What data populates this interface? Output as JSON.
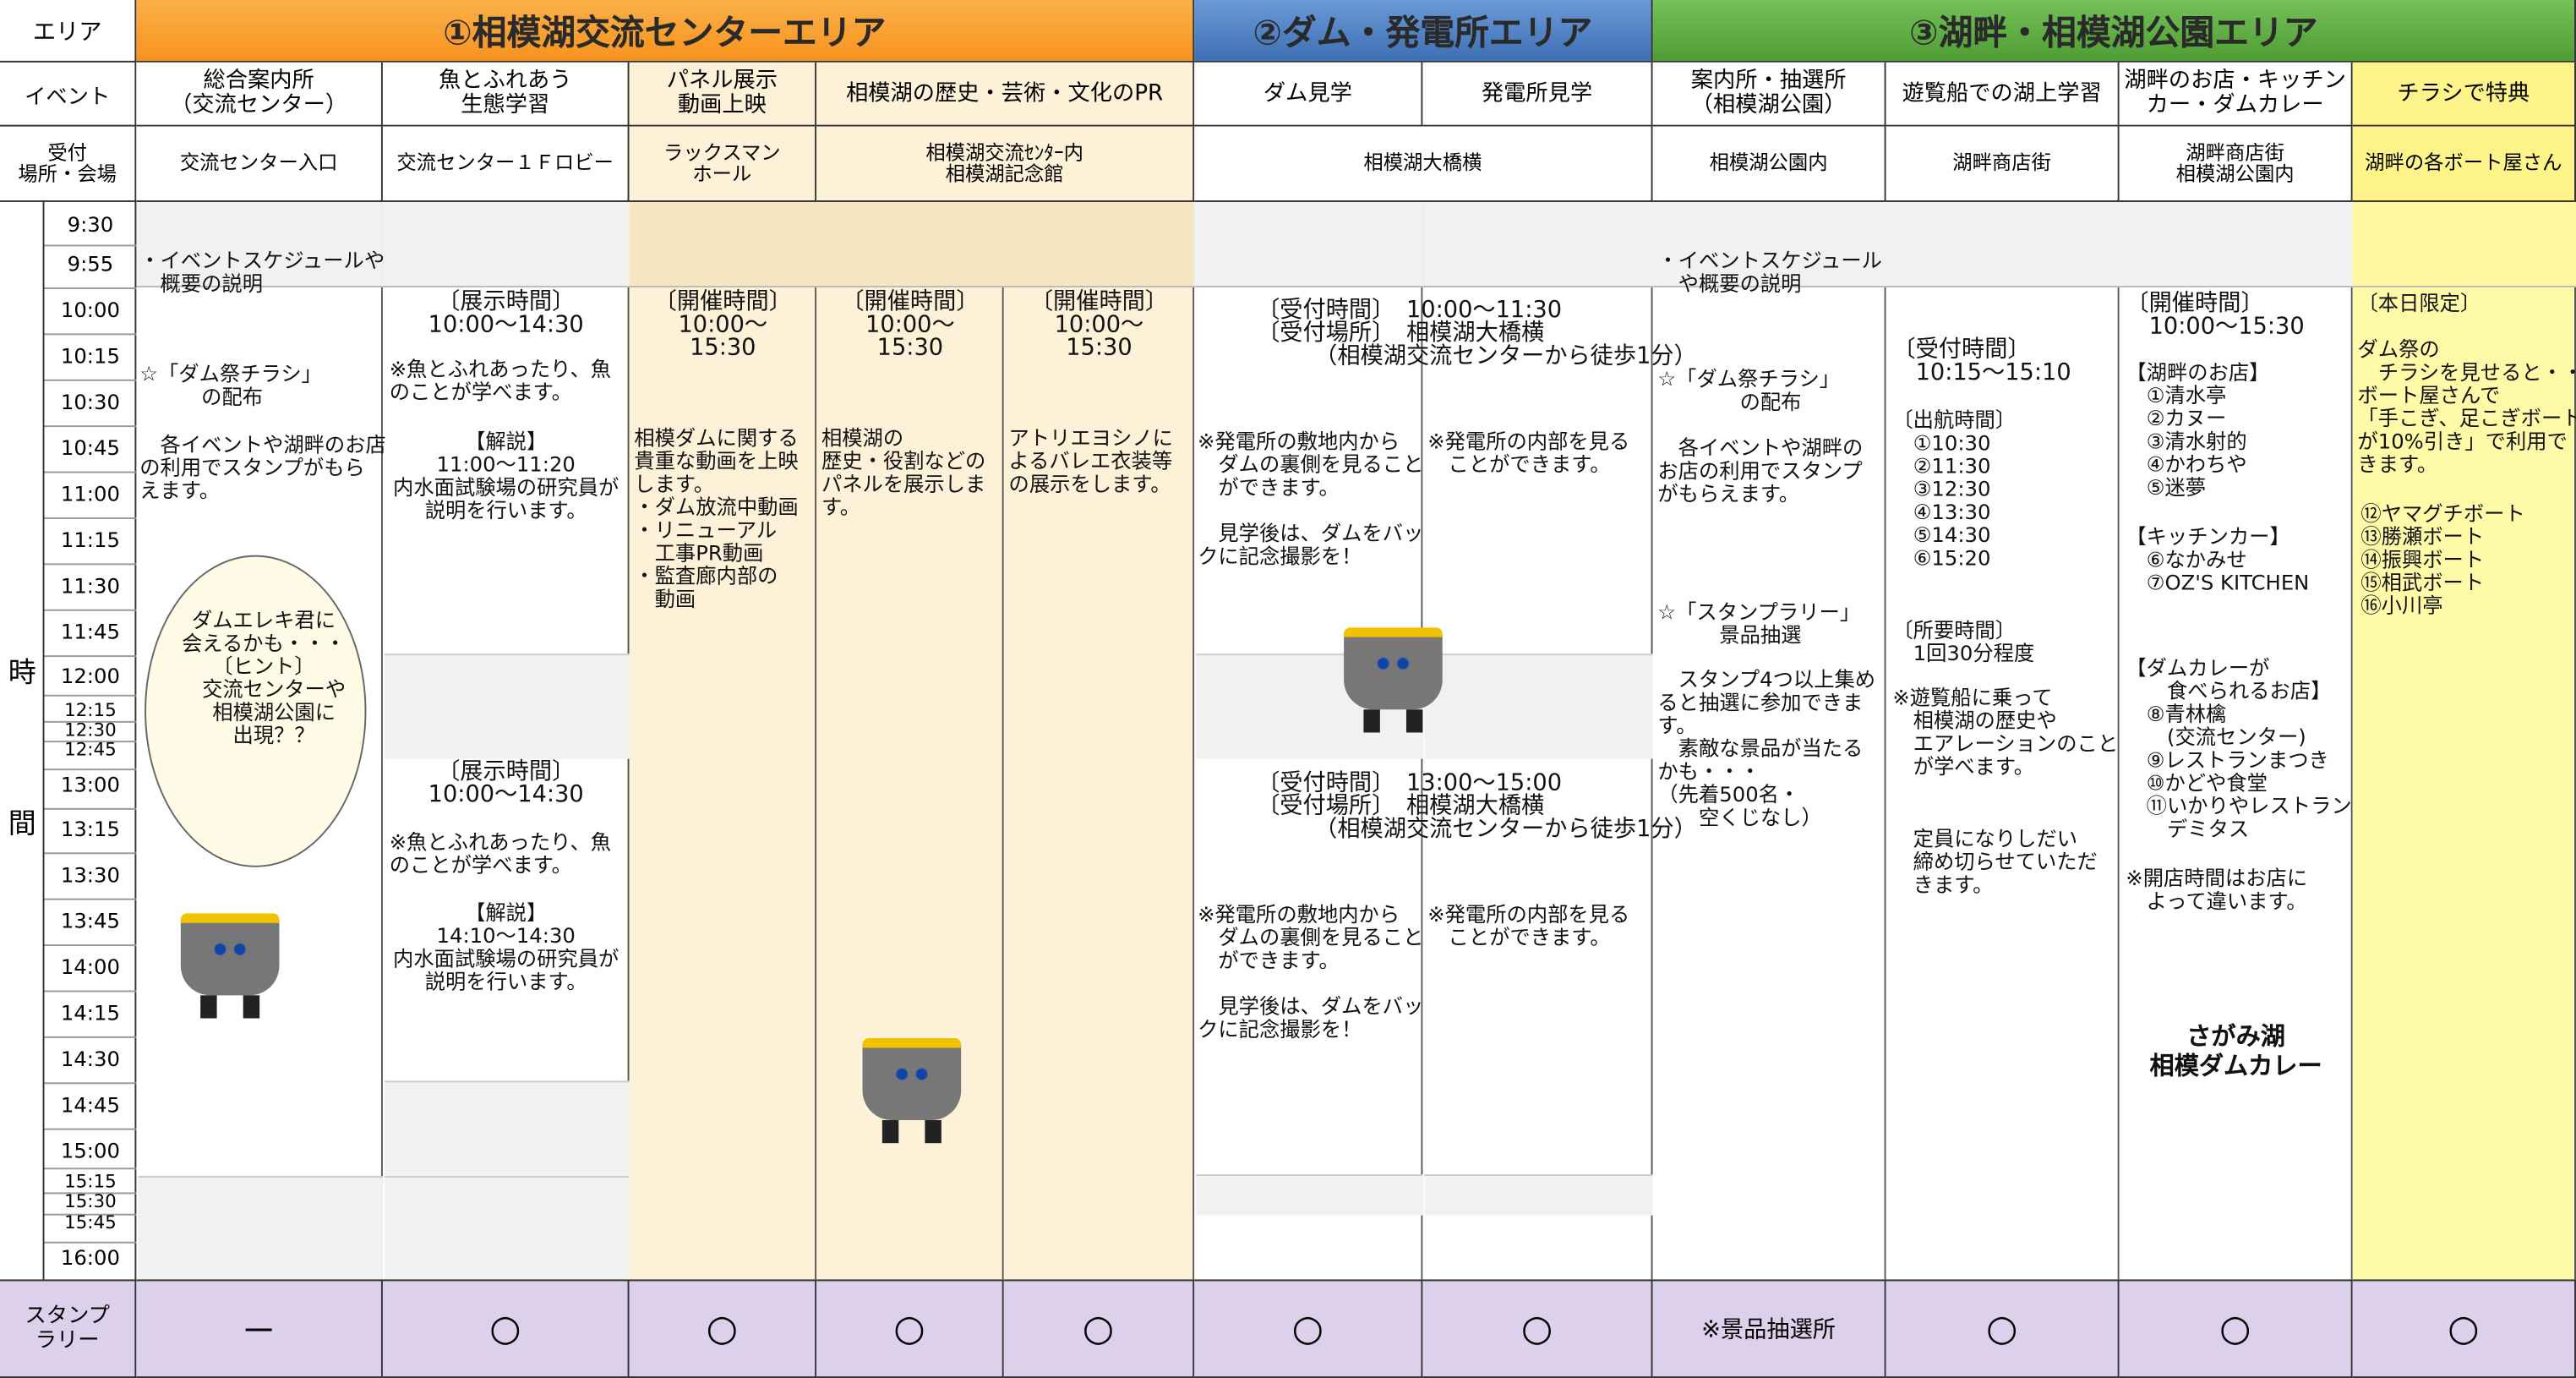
{
  "header": {
    "area_label": "エリア",
    "areas": [
      "①相模湖交流センターエリア",
      "②ダム・発電所エリア",
      "③湖畔・相模湖公園エリア"
    ],
    "event_label": "イベント",
    "venue_label": [
      "受付",
      "場所・会場"
    ],
    "events": [
      [
        "総合案内所",
        "（交流センター）"
      ],
      [
        "魚とふれあう",
        "生態学習"
      ],
      [
        "パネル展示",
        "動画上映"
      ],
      [
        "相模湖の歴史・芸術・文化のPR"
      ],
      [
        "ダム見学"
      ],
      [
        "発電所見学"
      ],
      [
        "案内所・抽選所",
        "（相模湖公園）"
      ],
      [
        "遊覧船での湖上学習"
      ],
      [
        "湖畔のお店・キッチン",
        "カー・ダムカレー"
      ],
      [
        "チラシで特典"
      ]
    ],
    "venues": [
      [
        "交流センター入口"
      ],
      [
        "交流センター１Ｆロビー"
      ],
      [
        "ラックスマン",
        "ホール"
      ],
      [
        "相模湖交流ｾﾝﾀｰ内",
        "相模湖記念館"
      ],
      [
        "相模湖大橋横"
      ],
      [
        "相模湖公園内"
      ],
      [
        "湖畔商店街"
      ],
      [
        "湖畔商店街",
        "相模湖公園内"
      ],
      [
        "湖畔の各ボート屋さん"
      ]
    ]
  },
  "time_label": [
    "時",
    "間"
  ],
  "times": [
    "9:30",
    "9:55",
    "10:00",
    "10:15",
    "10:30",
    "10:45",
    "11:00",
    "11:15",
    "11:30",
    "11:45",
    "12:00",
    "12:15",
    "12:30",
    "12:45",
    "13:00",
    "13:15",
    "13:30",
    "13:45",
    "14:00",
    "14:15",
    "14:30",
    "14:45",
    "15:00",
    "15:15",
    "15:30",
    "15:45",
    "16:00"
  ],
  "blocks": [
    {
      "lines": [
        "・イベントスケジュールや",
        "　概要の説明"
      ]
    },
    {
      "lines": [
        "☆「ダム祭チラシ」",
        "　　　の配布"
      ]
    },
    {
      "lines": [
        "　各イベントや湖畔のお店",
        "の利用でスタンプがもら",
        "えます。"
      ]
    },
    {
      "lines": [
        "ダムエレキ君に",
        "会えるかも・・・",
        "〔ヒント〕",
        "　交流センターや",
        "　相模湖公園に",
        "　出現？？"
      ]
    },
    {
      "lines": [
        "〔展示時間〕",
        "10:00～14:30"
      ]
    },
    {
      "lines": [
        "※魚とふれあったり、魚",
        "のことが学べます。"
      ]
    },
    {
      "lines": [
        "【解説】",
        "11:00～11:20",
        "内水面試験場の研究員が",
        "説明を行います。"
      ]
    },
    {
      "lines": [
        "〔展示時間〕",
        "10:00～14:30"
      ]
    },
    {
      "lines": [
        "※魚とふれあったり、魚",
        "のことが学べます。"
      ]
    },
    {
      "lines": [
        "【解説】",
        "14:10～14:30",
        "内水面試験場の研究員が",
        "説明を行います。"
      ]
    },
    {
      "lines": [
        "〔開催時間〕",
        "10:00～",
        "15:30"
      ]
    },
    {
      "lines": [
        "相模ダムに関する",
        "貴重な動画を上映",
        "します。",
        "・ダム放流中動画",
        "・リニューアル",
        "　工事PR動画",
        "・監査廊内部の",
        "　動画"
      ]
    },
    {
      "lines": [
        "〔開催時間〕",
        "10:00～",
        "15:30"
      ]
    },
    {
      "lines": [
        "相模湖の",
        "歴史・役割などの",
        "パネルを展示しま",
        "す。"
      ]
    },
    {
      "lines": [
        "〔開催時間〕",
        "10:00～",
        "15:30"
      ]
    },
    {
      "lines": [
        "アトリエヨシノに",
        "よるバレエ衣装等",
        "の展示をします。"
      ]
    },
    {
      "lines": [
        "〔受付時間〕　10:00～11:30",
        "〔受付場所〕　相模湖大橋横",
        "　　　（相模湖交流センターから徒歩1分）"
      ]
    },
    {
      "lines": [
        "※発電所の敷地内から",
        "　ダムの裏側を見ること",
        "　ができます。"
      ]
    },
    {
      "lines": [
        "　見学後は、ダムをバッ",
        "クに記念撮影を！"
      ]
    },
    {
      "lines": [
        "※発電所の内部を見る",
        "　ことができます。"
      ]
    },
    {
      "lines": [
        "〔受付時間〕　13:00～15:00",
        "〔受付場所〕　相模湖大橋横",
        "　　　（相模湖交流センターから徒歩1分）"
      ]
    },
    {
      "lines": [
        "※発電所の敷地内から",
        "　ダムの裏側を見ること",
        "　ができます。"
      ]
    },
    {
      "lines": [
        "　見学後は、ダムをバッ",
        "クに記念撮影を！"
      ]
    },
    {
      "lines": [
        "※発電所の内部を見る",
        "　ことができます。"
      ]
    },
    {
      "lines": [
        "・イベントスケジュール",
        "　や概要の説明"
      ]
    },
    {
      "lines": [
        "☆「ダム祭チラシ」",
        "　　　　の配布"
      ]
    },
    {
      "lines": [
        "　各イベントや湖畔の",
        "お店の利用でスタンプ",
        "がもらえます。"
      ]
    },
    {
      "lines": [
        "☆「スタンプラリー」",
        "　　　景品抽選"
      ]
    },
    {
      "lines": [
        "　スタンプ4つ以上集め",
        "ると抽選に参加できま",
        "す。",
        "　素敵な景品が当たる",
        "かも・・・",
        "（先着500名・",
        "　　空くじなし）"
      ]
    },
    {
      "lines": [
        "〔受付時間〕",
        "　10:15～15:10"
      ]
    },
    {
      "lines": [
        "〔出航時間〕",
        "　①10:30",
        "　②11:30",
        "　③12:30",
        "　④13:30",
        "　⑤14:30",
        "　⑥15:20"
      ]
    },
    {
      "lines": [
        "〔所要時間〕",
        "　1回30分程度"
      ]
    },
    {
      "lines": [
        "※遊覧船に乗って",
        "　相模湖の歴史や",
        "　エアレーションのこと",
        "　が学べます。"
      ]
    },
    {
      "lines": [
        "　定員になりしだい",
        "　締め切らせていただ",
        "　きます。"
      ]
    },
    {
      "lines": [
        "〔開催時間〕",
        "　10:00～15:30"
      ]
    },
    {
      "lines": [
        "【湖畔のお店】",
        "　①清水亭",
        "　②カヌー",
        "　③清水射的",
        "　④かわちや",
        "　⑤迷夢"
      ]
    },
    {
      "lines": [
        "【キッチンカー】",
        "　⑥なかみせ",
        "　⑦OZ'S KITCHEN"
      ]
    },
    {
      "lines": [
        "【ダムカレーが",
        "　　食べられるお店】",
        "　⑧青林檎",
        "　　(交流センター)",
        "　⑨レストランまつき",
        "　⑩かどや食堂",
        "　⑪いかりやレストラン",
        "　　デミタス"
      ]
    },
    {
      "lines": [
        "※開店時間はお店に",
        "　よって違います。"
      ]
    },
    {
      "lines": [
        "さがみ湖",
        "相模ダムカレー"
      ]
    },
    {
      "lines": [
        "〔本日限定〕"
      ]
    },
    {
      "lines": [
        "ダム祭の",
        "　チラシを見せると・・・",
        "ボート屋さんで",
        "「手こぎ、足こぎボート",
        "が10%引き」で利用で",
        "きます。"
      ]
    },
    {
      "lines": [
        "⑫ヤマグチボート",
        "⑬勝瀬ボート",
        "⑭振興ボート",
        "⑮相武ボート",
        "⑯小川亭"
      ]
    }
  ],
  "stamp_label": [
    "スタンプ",
    "ラリー"
  ],
  "stamps": [
    "－",
    "○",
    "○",
    "○",
    "○",
    "○",
    "○",
    "※景品抽選所",
    "○",
    "○",
    "○"
  ]
}
